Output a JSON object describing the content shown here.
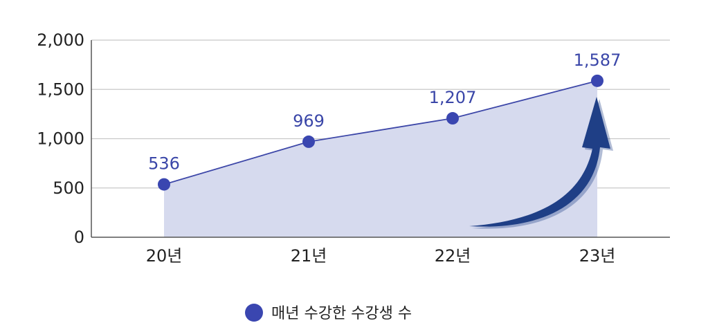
{
  "chart_data": {
    "type": "area",
    "categories": [
      "20년",
      "21년",
      "22년",
      "23년"
    ],
    "series": [
      {
        "name": "매년 수강한 수강생 수",
        "values": [
          536,
          969,
          1207,
          1587
        ]
      }
    ],
    "data_labels": [
      "536",
      "969",
      "1,207",
      "1,587"
    ],
    "y_ticks": [
      {
        "value": 0,
        "label": "0"
      },
      {
        "value": 500,
        "label": "500"
      },
      {
        "value": 1000,
        "label": "1,000"
      },
      {
        "value": 1500,
        "label": "1,500"
      },
      {
        "value": 2000,
        "label": "2,000"
      }
    ],
    "ylim": [
      0,
      2000
    ],
    "grid": true,
    "legend_position": "bottom",
    "annotation": "upward-arrow",
    "colors": {
      "line": "#3d47a8",
      "marker": "#3a46b0",
      "fill": "#d6daee",
      "label": "#3a46a8",
      "grid": "#c8c8c8",
      "axis": "#555555",
      "arrow": "#1f3f86"
    }
  }
}
